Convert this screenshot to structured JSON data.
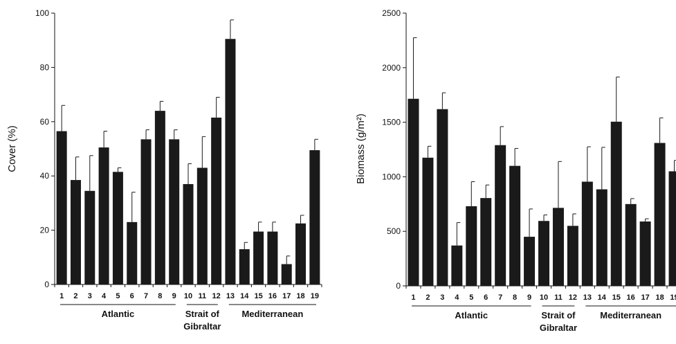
{
  "chart_data": [
    {
      "type": "bar",
      "ylabel": "Cover (%)",
      "ylim": [
        0,
        100
      ],
      "yticks": [
        0,
        20,
        40,
        60,
        80,
        100
      ],
      "categories": [
        "1",
        "2",
        "3",
        "4",
        "5",
        "6",
        "7",
        "8",
        "9",
        "10",
        "11",
        "12",
        "13",
        "14",
        "15",
        "16",
        "17",
        "18",
        "19"
      ],
      "values": [
        56.5,
        38.5,
        34.5,
        50.5,
        41.5,
        23,
        53.5,
        64,
        53.5,
        37,
        43,
        61.5,
        90.5,
        13,
        19.5,
        19.5,
        7.5,
        22.5,
        49.5
      ],
      "errors": [
        9.5,
        8.5,
        13,
        6,
        1.5,
        11,
        3.5,
        3.5,
        3.5,
        7.5,
        11.5,
        7.5,
        7,
        2.5,
        3.5,
        3.5,
        3,
        3,
        4
      ],
      "groups": [
        {
          "label": "Atlantic",
          "from": 1,
          "to": 9
        },
        {
          "label": "Strait of Gibraltar",
          "from": 10,
          "to": 12
        },
        {
          "label": "Mediterranean",
          "from": 13,
          "to": 19
        }
      ]
    },
    {
      "type": "bar",
      "ylabel": "Biomass (g/m²)",
      "ylim": [
        0,
        2500
      ],
      "yticks": [
        0,
        500,
        1000,
        1500,
        2000,
        2500
      ],
      "categories": [
        "1",
        "2",
        "3",
        "4",
        "5",
        "6",
        "7",
        "8",
        "9",
        "10",
        "11",
        "12",
        "13",
        "14",
        "15",
        "16",
        "17",
        "18",
        "19"
      ],
      "values": [
        1715,
        1175,
        1620,
        370,
        730,
        805,
        1290,
        1100,
        450,
        595,
        715,
        550,
        955,
        885,
        1505,
        750,
        590,
        1310,
        1050
      ],
      "errors": [
        560,
        105,
        150,
        210,
        225,
        120,
        170,
        160,
        255,
        55,
        425,
        110,
        320,
        385,
        410,
        50,
        25,
        230,
        100
      ],
      "groups": [
        {
          "label": "Atlantic",
          "from": 1,
          "to": 9
        },
        {
          "label": "Strait of Gibraltar",
          "from": 10,
          "to": 12
        },
        {
          "label": "Mediterranean",
          "from": 13,
          "to": 19
        }
      ]
    }
  ]
}
